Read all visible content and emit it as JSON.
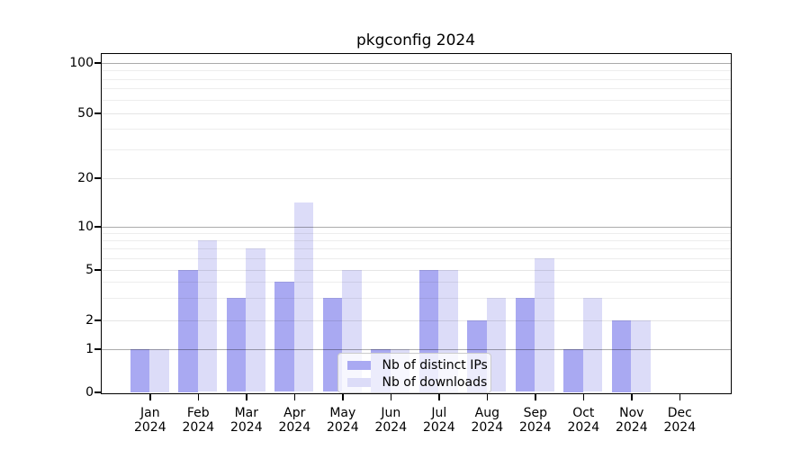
{
  "title": "pkgconfig 2024",
  "chart_data": {
    "type": "bar",
    "title": "pkgconfig 2024",
    "categories": [
      "Jan 2024",
      "Feb 2024",
      "Mar 2024",
      "Apr 2024",
      "May 2024",
      "Jun 2024",
      "Jul 2024",
      "Aug 2024",
      "Sep 2024",
      "Oct 2024",
      "Nov 2024",
      "Dec 2024"
    ],
    "series": [
      {
        "name": "Nb of distinct IPs",
        "color": "#a9a9f2",
        "values": [
          1,
          5,
          3,
          4,
          3,
          1,
          5,
          2,
          3,
          1,
          2,
          0
        ]
      },
      {
        "name": "Nb of downloads",
        "color": "#dcdcf8",
        "values": [
          1,
          8,
          7,
          14,
          5,
          1,
          5,
          3,
          6,
          3,
          2,
          0
        ]
      }
    ],
    "xlabel": "",
    "ylabel": "",
    "ylim": [
      0,
      100
    ],
    "yscale": "log-like with linear 0-1 segment",
    "y_major_ticks": [
      0,
      1,
      2,
      5,
      10,
      20,
      50,
      100
    ],
    "y_decade_gridlines": [
      1,
      10,
      100
    ],
    "y_minor_gridlines": [
      3,
      4,
      6,
      7,
      8,
      9,
      30,
      40,
      60,
      70,
      80,
      90
    ],
    "grid": true,
    "legend_position": "lower center"
  },
  "colors": {
    "bar_distinct_ips": "#a9a9f2",
    "bar_downloads": "#dcdcf8",
    "axis": "#000000",
    "legend_border": "#cccccc"
  }
}
